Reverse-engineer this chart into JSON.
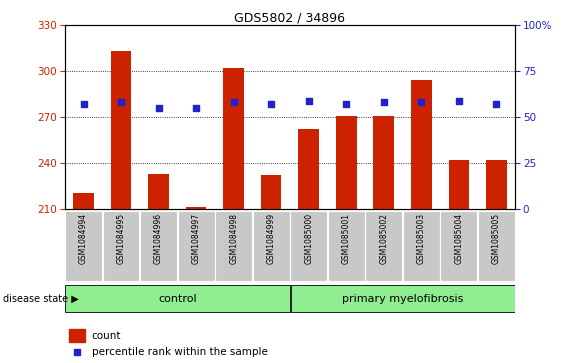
{
  "title": "GDS5802 / 34896",
  "samples": [
    "GSM1084994",
    "GSM1084995",
    "GSM1084996",
    "GSM1084997",
    "GSM1084998",
    "GSM1084999",
    "GSM1085000",
    "GSM1085001",
    "GSM1085002",
    "GSM1085003",
    "GSM1085004",
    "GSM1085005"
  ],
  "counts": [
    220,
    313,
    233,
    211,
    302,
    232,
    262,
    271,
    271,
    294,
    242,
    242
  ],
  "percentiles": [
    57,
    58,
    55,
    55,
    58,
    57,
    59,
    57,
    58,
    58,
    59,
    57
  ],
  "ylim_left": [
    210,
    330
  ],
  "ylim_right": [
    0,
    100
  ],
  "yticks_left": [
    210,
    240,
    270,
    300,
    330
  ],
  "yticks_right": [
    0,
    25,
    50,
    75,
    100
  ],
  "bar_color": "#cc2200",
  "dot_color": "#2222cc",
  "control_label": "control",
  "disease_label": "primary myelofibrosis",
  "disease_state_label": "disease state",
  "group_bg_color": "#90ee90",
  "tick_bg_color": "#c8c8c8",
  "legend_count_label": "count",
  "legend_pct_label": "percentile rank within the sample",
  "bar_width": 0.55,
  "n_control": 6,
  "n_disease": 6
}
